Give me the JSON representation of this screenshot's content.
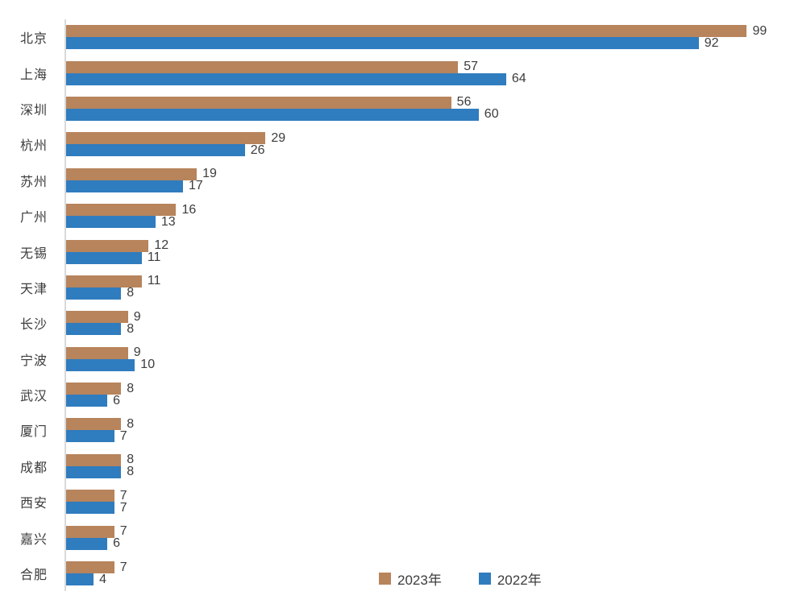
{
  "chart_data": {
    "type": "bar",
    "orientation": "horizontal",
    "title": "",
    "xlabel": "",
    "ylabel": "",
    "xlim": [
      0,
      104
    ],
    "grid": false,
    "legend_position": "bottom",
    "value_labels": true,
    "categories": [
      "北京",
      "上海",
      "深圳",
      "杭州",
      "苏州",
      "广州",
      "无锡",
      "天津",
      "长沙",
      "宁波",
      "武汉",
      "厦门",
      "成都",
      "西安",
      "嘉兴",
      "合肥"
    ],
    "series": [
      {
        "name": "2023年",
        "color": "#B7845C",
        "values": [
          99,
          57,
          56,
          29,
          19,
          16,
          12,
          11,
          9,
          9,
          8,
          8,
          8,
          7,
          7,
          7
        ]
      },
      {
        "name": "2022年",
        "color": "#2F7CBF",
        "values": [
          92,
          64,
          60,
          26,
          17,
          13,
          11,
          8,
          8,
          10,
          6,
          7,
          8,
          7,
          6,
          4
        ]
      }
    ],
    "colors": {
      "axis_line": "#d9d9d9",
      "text": "#3c3c3c",
      "background": "#ffffff"
    }
  }
}
